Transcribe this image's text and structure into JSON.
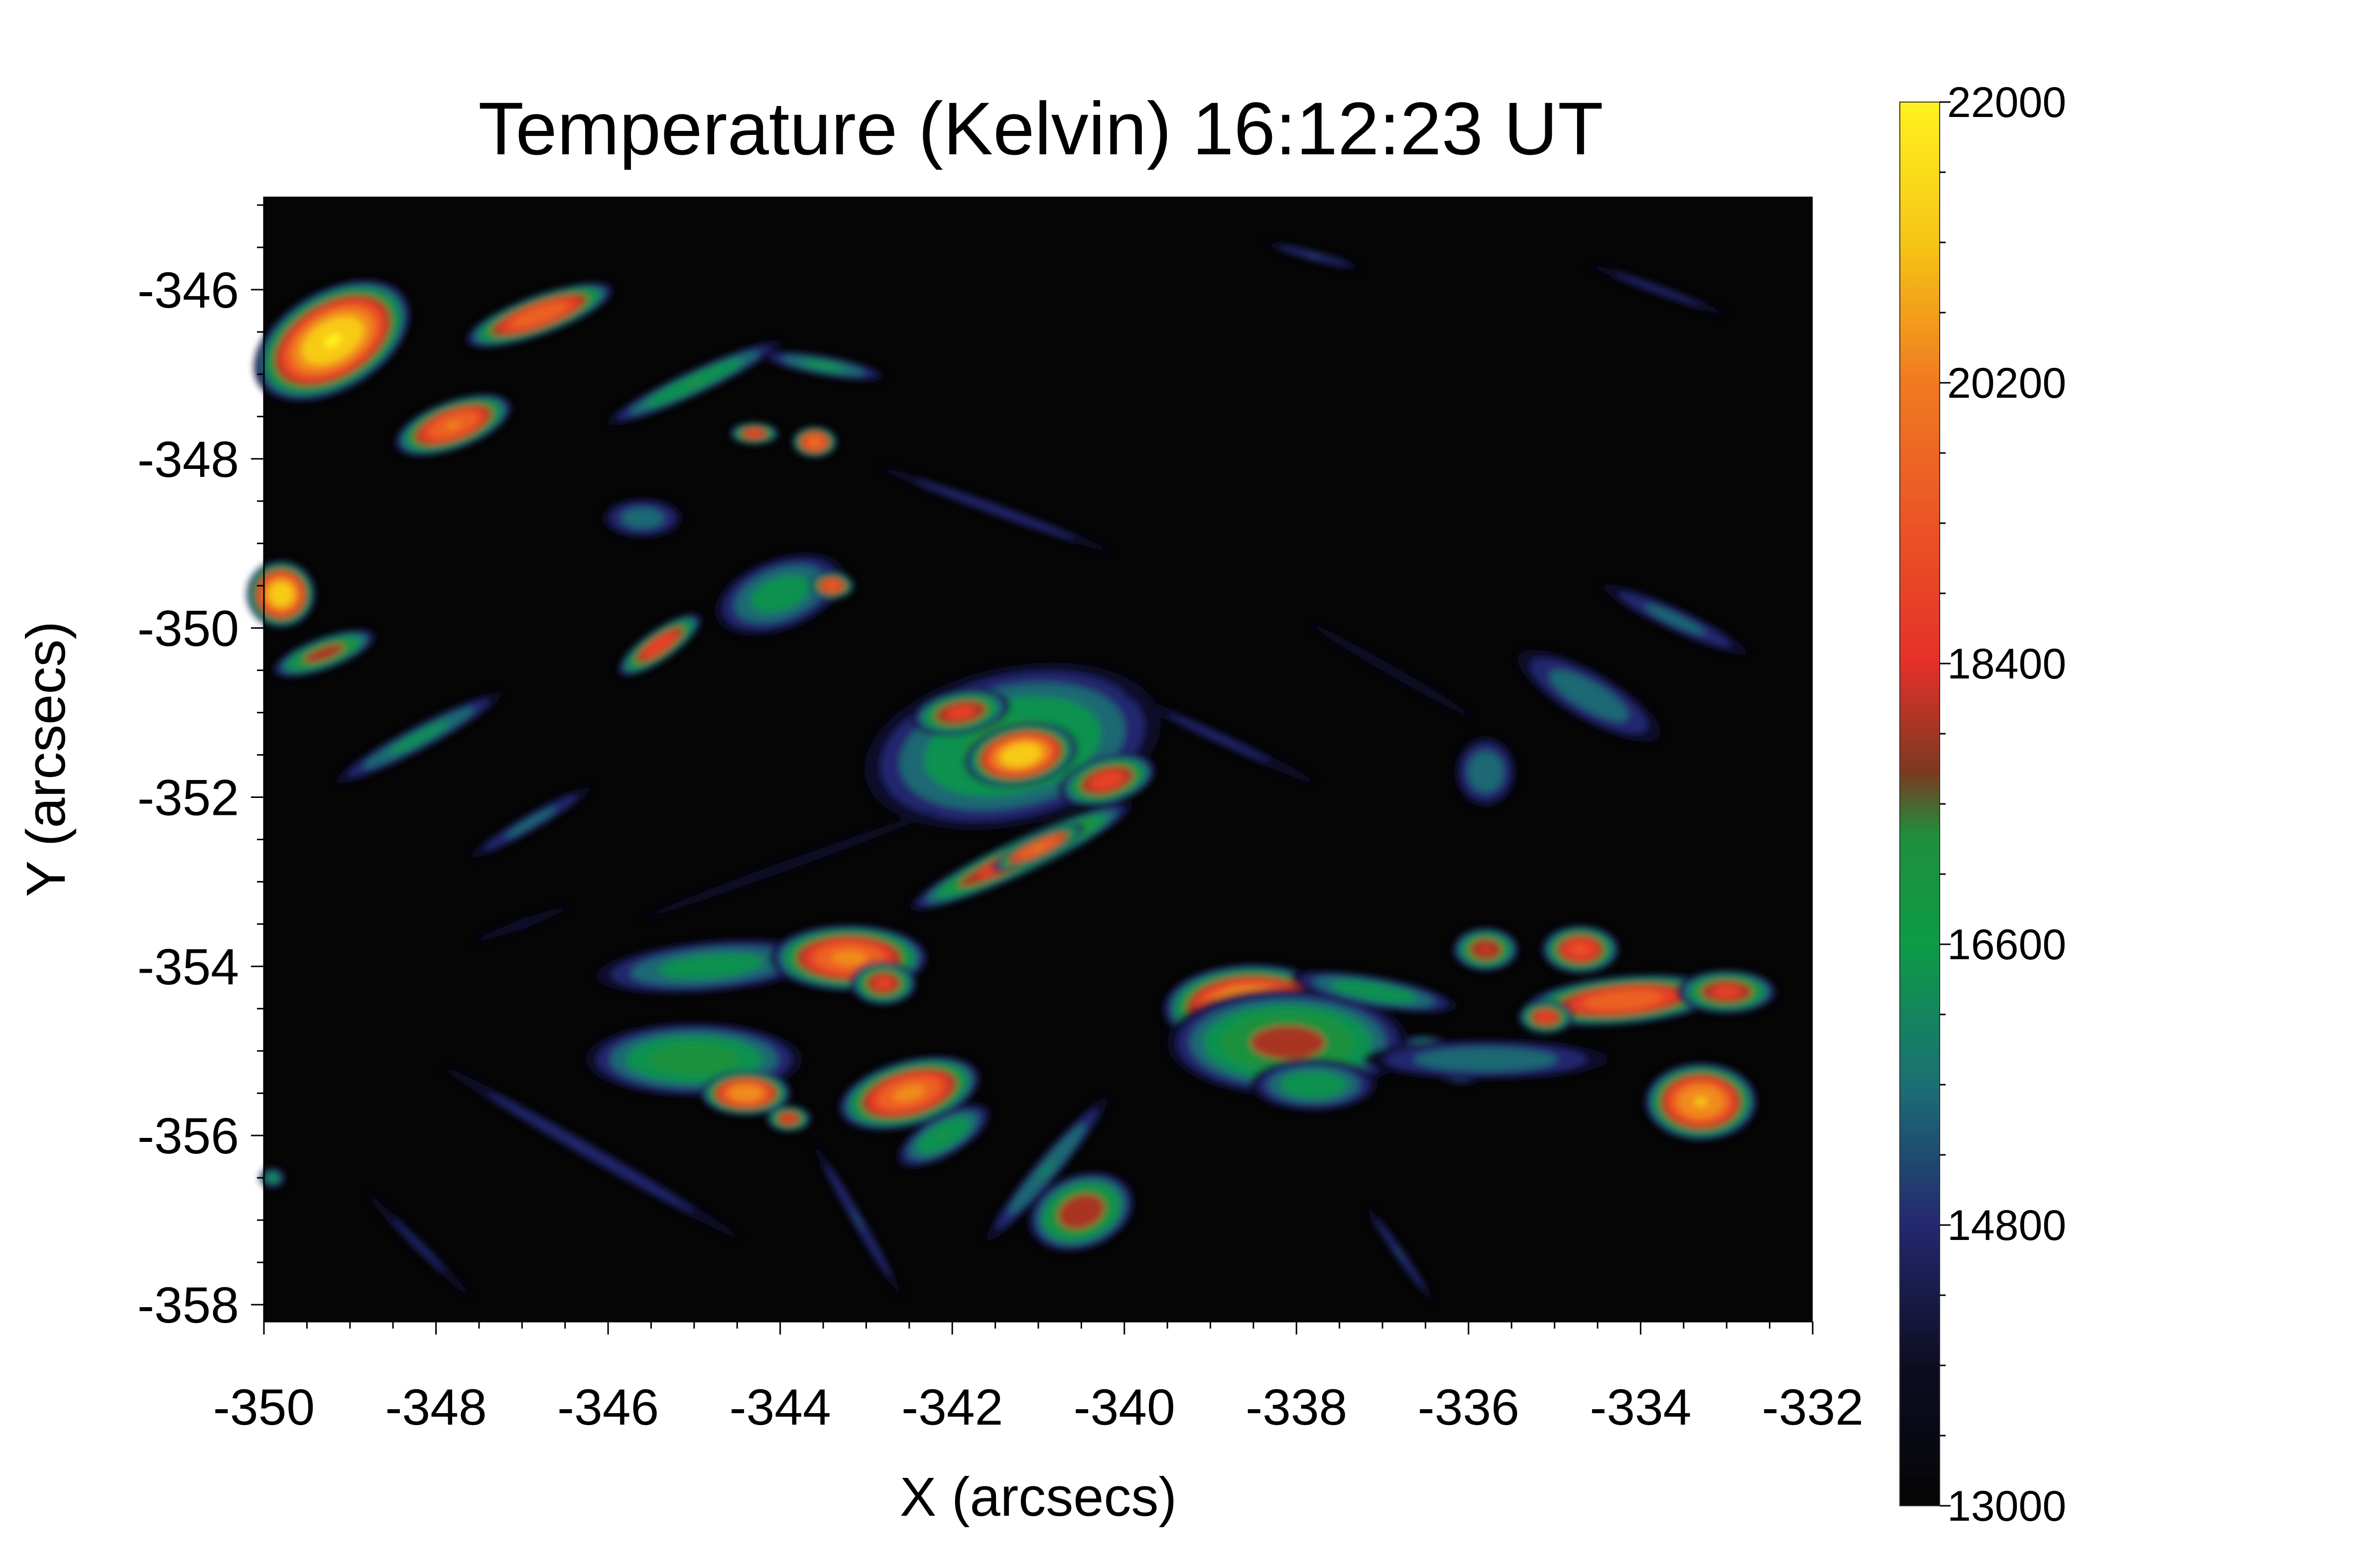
{
  "chart_data": {
    "type": "heatmap",
    "title": "Temperature (Kelvin) 16:12:23 UT",
    "xlabel": "X (arcsecs)",
    "ylabel": "Y (arcsecs)",
    "xlim": [
      -350,
      -332
    ],
    "ylim": [
      -358.2,
      -344.9
    ],
    "x_ticks": [
      -350,
      -348,
      -346,
      -344,
      -342,
      -340,
      -338,
      -336,
      -334,
      -332
    ],
    "y_ticks": [
      -346,
      -348,
      -350,
      -352,
      -354,
      -356,
      -358
    ],
    "colorbar": {
      "range": [
        13000,
        22000
      ],
      "ticks": [
        22000,
        20200,
        18400,
        16600,
        14800,
        13000
      ],
      "stops": [
        {
          "value": 13000,
          "color": "#050505"
        },
        {
          "value": 13900,
          "color": "#0d0d22"
        },
        {
          "value": 14800,
          "color": "#24286e"
        },
        {
          "value": 15700,
          "color": "#1b6f74"
        },
        {
          "value": 16600,
          "color": "#0d9b46"
        },
        {
          "value": 17300,
          "color": "#1f8f3d"
        },
        {
          "value": 17700,
          "color": "#7a3a20"
        },
        {
          "value": 18400,
          "color": "#e5302a"
        },
        {
          "value": 20200,
          "color": "#f07a20"
        },
        {
          "value": 21100,
          "color": "#f6c516"
        },
        {
          "value": 22000,
          "color": "#fff21e"
        }
      ]
    },
    "blobs": [
      {
        "x": -349.2,
        "y": -346.6,
        "sx": 0.75,
        "sy": 0.45,
        "rot": -30,
        "t": 22000
      },
      {
        "x": -347.8,
        "y": -347.6,
        "sx": 0.55,
        "sy": 0.22,
        "rot": -20,
        "t": 20400
      },
      {
        "x": -346.8,
        "y": -346.3,
        "sx": 0.7,
        "sy": 0.18,
        "rot": -20,
        "t": 20200
      },
      {
        "x": -345.0,
        "y": -347.1,
        "sx": 0.9,
        "sy": 0.12,
        "rot": -25,
        "t": 17200
      },
      {
        "x": -343.6,
        "y": -347.8,
        "sx": 0.2,
        "sy": 0.14,
        "rot": 0,
        "t": 20400
      },
      {
        "x": -344.3,
        "y": -347.7,
        "sx": 0.22,
        "sy": 0.1,
        "rot": 0,
        "t": 19200
      },
      {
        "x": -349.8,
        "y": -349.6,
        "sx": 0.3,
        "sy": 0.3,
        "rot": 0,
        "t": 21800
      },
      {
        "x": -349.3,
        "y": -350.3,
        "sx": 0.5,
        "sy": 0.15,
        "rot": -20,
        "t": 18400
      },
      {
        "x": -348.2,
        "y": -351.3,
        "sx": 0.9,
        "sy": 0.12,
        "rot": -28,
        "t": 16600
      },
      {
        "x": -346.9,
        "y": -352.3,
        "sx": 0.7,
        "sy": 0.09,
        "rot": -30,
        "t": 15800
      },
      {
        "x": -345.4,
        "y": -350.2,
        "sx": 0.45,
        "sy": 0.14,
        "rot": -35,
        "t": 19400
      },
      {
        "x": -344.0,
        "y": -349.6,
        "sx": 0.65,
        "sy": 0.35,
        "rot": -20,
        "t": 16800
      },
      {
        "x": -343.4,
        "y": -349.5,
        "sx": 0.2,
        "sy": 0.12,
        "rot": 0,
        "t": 19800
      },
      {
        "x": -345.6,
        "y": -348.7,
        "sx": 0.4,
        "sy": 0.2,
        "rot": 0,
        "t": 16000
      },
      {
        "x": -341.3,
        "y": -351.4,
        "sx": 1.4,
        "sy": 0.75,
        "rot": -12,
        "t": 17400
      },
      {
        "x": -341.2,
        "y": -351.5,
        "sx": 0.5,
        "sy": 0.28,
        "rot": -10,
        "t": 21800
      },
      {
        "x": -341.9,
        "y": -351.0,
        "sx": 0.45,
        "sy": 0.2,
        "rot": -10,
        "t": 19000
      },
      {
        "x": -340.2,
        "y": -351.8,
        "sx": 0.45,
        "sy": 0.22,
        "rot": -15,
        "t": 19200
      },
      {
        "x": -341.2,
        "y": -352.7,
        "sx": 1.1,
        "sy": 0.16,
        "rot": -25,
        "t": 19300
      },
      {
        "x": -341.0,
        "y": -352.6,
        "sx": 0.45,
        "sy": 0.1,
        "rot": -25,
        "t": 20400
      },
      {
        "x": -338.9,
        "y": -351.3,
        "sx": 1.2,
        "sy": 0.07,
        "rot": 25,
        "t": 15000
      },
      {
        "x": -341.5,
        "y": -348.6,
        "sx": 1.3,
        "sy": 0.06,
        "rot": 20,
        "t": 15400
      },
      {
        "x": -335.8,
        "y": -351.7,
        "sx": 0.3,
        "sy": 0.35,
        "rot": 0,
        "t": 16200
      },
      {
        "x": -334.6,
        "y": -350.8,
        "sx": 0.8,
        "sy": 0.25,
        "rot": 30,
        "t": 16100
      },
      {
        "x": -333.6,
        "y": -349.9,
        "sx": 0.8,
        "sy": 0.12,
        "rot": 25,
        "t": 15800
      },
      {
        "x": -333.8,
        "y": -346.0,
        "sx": 0.8,
        "sy": 0.05,
        "rot": 20,
        "t": 15200
      },
      {
        "x": -336.9,
        "y": -350.5,
        "sx": 1.2,
        "sy": 0.06,
        "rot": 30,
        "t": 14600
      },
      {
        "x": -344.8,
        "y": -354.0,
        "sx": 1.1,
        "sy": 0.25,
        "rot": -5,
        "t": 16800
      },
      {
        "x": -343.2,
        "y": -353.9,
        "sx": 0.7,
        "sy": 0.3,
        "rot": 0,
        "t": 20500
      },
      {
        "x": -342.8,
        "y": -354.2,
        "sx": 0.3,
        "sy": 0.2,
        "rot": 0,
        "t": 19000
      },
      {
        "x": -345.0,
        "y": -355.1,
        "sx": 1.0,
        "sy": 0.35,
        "rot": 0,
        "t": 17600
      },
      {
        "x": -344.4,
        "y": -355.5,
        "sx": 0.4,
        "sy": 0.2,
        "rot": 0,
        "t": 21000
      },
      {
        "x": -343.9,
        "y": -355.8,
        "sx": 0.2,
        "sy": 0.12,
        "rot": 0,
        "t": 19000
      },
      {
        "x": -342.5,
        "y": -355.5,
        "sx": 0.65,
        "sy": 0.3,
        "rot": -15,
        "t": 20500
      },
      {
        "x": -342.1,
        "y": -356.0,
        "sx": 0.5,
        "sy": 0.2,
        "rot": -30,
        "t": 17200
      },
      {
        "x": -340.5,
        "y": -356.9,
        "sx": 0.5,
        "sy": 0.35,
        "rot": -20,
        "t": 18600
      },
      {
        "x": -340.9,
        "y": -356.4,
        "sx": 0.9,
        "sy": 0.12,
        "rot": -50,
        "t": 16400
      },
      {
        "x": -338.5,
        "y": -354.5,
        "sx": 0.8,
        "sy": 0.4,
        "rot": 0,
        "t": 21800
      },
      {
        "x": -338.1,
        "y": -354.9,
        "sx": 1.1,
        "sy": 0.5,
        "rot": 0,
        "t": 18200
      },
      {
        "x": -337.8,
        "y": -355.4,
        "sx": 0.6,
        "sy": 0.25,
        "rot": 0,
        "t": 17000
      },
      {
        "x": -337.1,
        "y": -354.3,
        "sx": 0.8,
        "sy": 0.15,
        "rot": 10,
        "t": 17000
      },
      {
        "x": -336.3,
        "y": -355.1,
        "sx": 0.4,
        "sy": 0.18,
        "rot": 20,
        "t": 19400
      },
      {
        "x": -335.8,
        "y": -353.8,
        "sx": 0.3,
        "sy": 0.2,
        "rot": 0,
        "t": 18800
      },
      {
        "x": -334.7,
        "y": -353.8,
        "sx": 0.35,
        "sy": 0.22,
        "rot": 0,
        "t": 19600
      },
      {
        "x": -334.2,
        "y": -354.4,
        "sx": 0.9,
        "sy": 0.22,
        "rot": -5,
        "t": 20200
      },
      {
        "x": -333.0,
        "y": -354.3,
        "sx": 0.45,
        "sy": 0.2,
        "rot": 0,
        "t": 19000
      },
      {
        "x": -335.1,
        "y": -354.6,
        "sx": 0.25,
        "sy": 0.15,
        "rot": 0,
        "t": 19200
      },
      {
        "x": -333.3,
        "y": -355.6,
        "sx": 0.5,
        "sy": 0.35,
        "rot": 0,
        "t": 21200
      },
      {
        "x": -335.8,
        "y": -355.1,
        "sx": 1.2,
        "sy": 0.2,
        "rot": 0,
        "t": 16200
      },
      {
        "x": -346.2,
        "y": -356.2,
        "sx": 1.8,
        "sy": 0.08,
        "rot": 30,
        "t": 15400
      },
      {
        "x": -348.2,
        "y": -357.3,
        "sx": 0.8,
        "sy": 0.06,
        "rot": 45,
        "t": 15000
      },
      {
        "x": -343.1,
        "y": -357.0,
        "sx": 0.9,
        "sy": 0.06,
        "rot": 60,
        "t": 15600
      },
      {
        "x": -336.8,
        "y": -357.4,
        "sx": 0.6,
        "sy": 0.05,
        "rot": 55,
        "t": 15600
      },
      {
        "x": -343.9,
        "y": -352.8,
        "sx": 2.0,
        "sy": 0.06,
        "rot": -20,
        "t": 14600
      },
      {
        "x": -347.0,
        "y": -353.5,
        "sx": 0.6,
        "sy": 0.05,
        "rot": -20,
        "t": 14800
      },
      {
        "x": -343.5,
        "y": -346.9,
        "sx": 0.6,
        "sy": 0.1,
        "rot": 10,
        "t": 16600
      },
      {
        "x": -337.8,
        "y": -345.6,
        "sx": 0.5,
        "sy": 0.05,
        "rot": 15,
        "t": 15600
      },
      {
        "x": -349.9,
        "y": -356.5,
        "sx": 0.12,
        "sy": 0.1,
        "rot": 0,
        "t": 16600
      }
    ]
  }
}
